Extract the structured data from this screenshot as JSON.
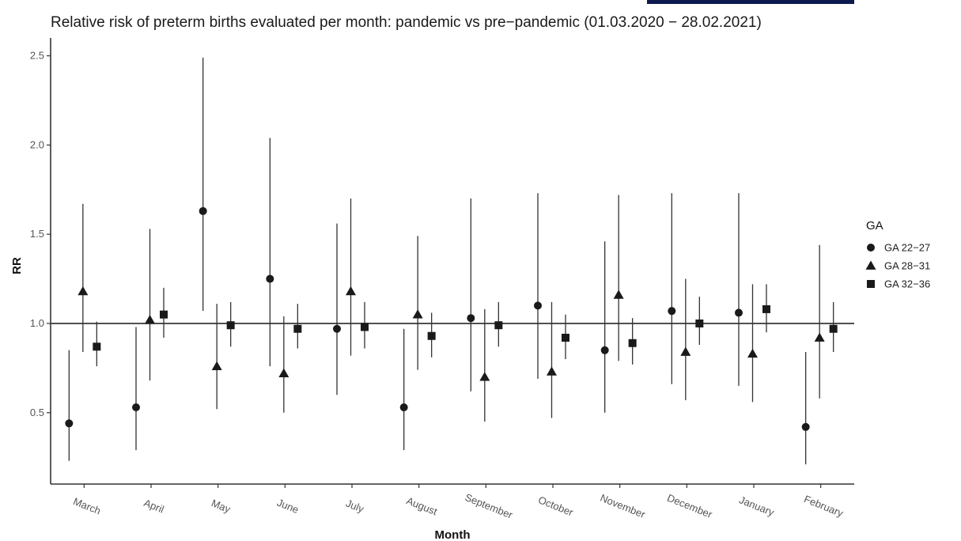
{
  "chart_data": {
    "type": "scatter",
    "title": "Relative risk of preterm births evaluated per month: pandemic vs pre−pandemic (01.03.2020 − 28.02.2021)",
    "xlabel": "Month",
    "ylabel": "RR",
    "categories": [
      "March",
      "April",
      "May",
      "June",
      "July",
      "August",
      "September",
      "October",
      "November",
      "December",
      "January",
      "February"
    ],
    "ylim": [
      0.1,
      2.6
    ],
    "yticks": [
      "0.5",
      "1.0",
      "1.5",
      "2.0",
      "2.5"
    ],
    "reference_line": 1.0,
    "legend_title": "GA",
    "legend_position": "right",
    "grid": false,
    "series": [
      {
        "name": "GA 22−27",
        "marker": "circle",
        "values": [
          0.44,
          0.53,
          1.63,
          1.25,
          0.97,
          0.53,
          1.03,
          1.1,
          0.85,
          1.07,
          1.06,
          0.42
        ],
        "lower": [
          0.23,
          0.29,
          1.07,
          0.76,
          0.6,
          0.29,
          0.62,
          0.69,
          0.5,
          0.66,
          0.65,
          0.21
        ],
        "upper": [
          0.85,
          0.98,
          2.49,
          2.04,
          1.56,
          0.97,
          1.7,
          1.73,
          1.46,
          1.73,
          1.73,
          0.84
        ]
      },
      {
        "name": "GA 28−31",
        "marker": "triangle",
        "values": [
          1.18,
          1.02,
          0.76,
          0.72,
          1.18,
          1.05,
          0.7,
          0.73,
          1.16,
          0.84,
          0.83,
          0.92
        ],
        "lower": [
          0.84,
          0.68,
          0.52,
          0.5,
          0.82,
          0.74,
          0.45,
          0.47,
          0.79,
          0.57,
          0.56,
          0.58
        ],
        "upper": [
          1.67,
          1.53,
          1.11,
          1.04,
          1.7,
          1.49,
          1.08,
          1.12,
          1.72,
          1.25,
          1.22,
          1.44
        ]
      },
      {
        "name": "GA 32−36",
        "marker": "square",
        "values": [
          0.87,
          1.05,
          0.99,
          0.97,
          0.98,
          0.93,
          0.99,
          0.92,
          0.89,
          1.0,
          1.08,
          0.97
        ],
        "lower": [
          0.76,
          0.92,
          0.87,
          0.86,
          0.86,
          0.81,
          0.87,
          0.8,
          0.77,
          0.88,
          0.95,
          0.84
        ],
        "upper": [
          1.01,
          1.2,
          1.12,
          1.11,
          1.12,
          1.06,
          1.12,
          1.05,
          1.03,
          1.15,
          1.22,
          1.12
        ]
      }
    ]
  },
  "colors": {
    "points": "#1a1a1a",
    "interval": "#333333",
    "reference_line": "#444444",
    "axis": "#333333",
    "accent_bar": "#0c1a4d"
  }
}
